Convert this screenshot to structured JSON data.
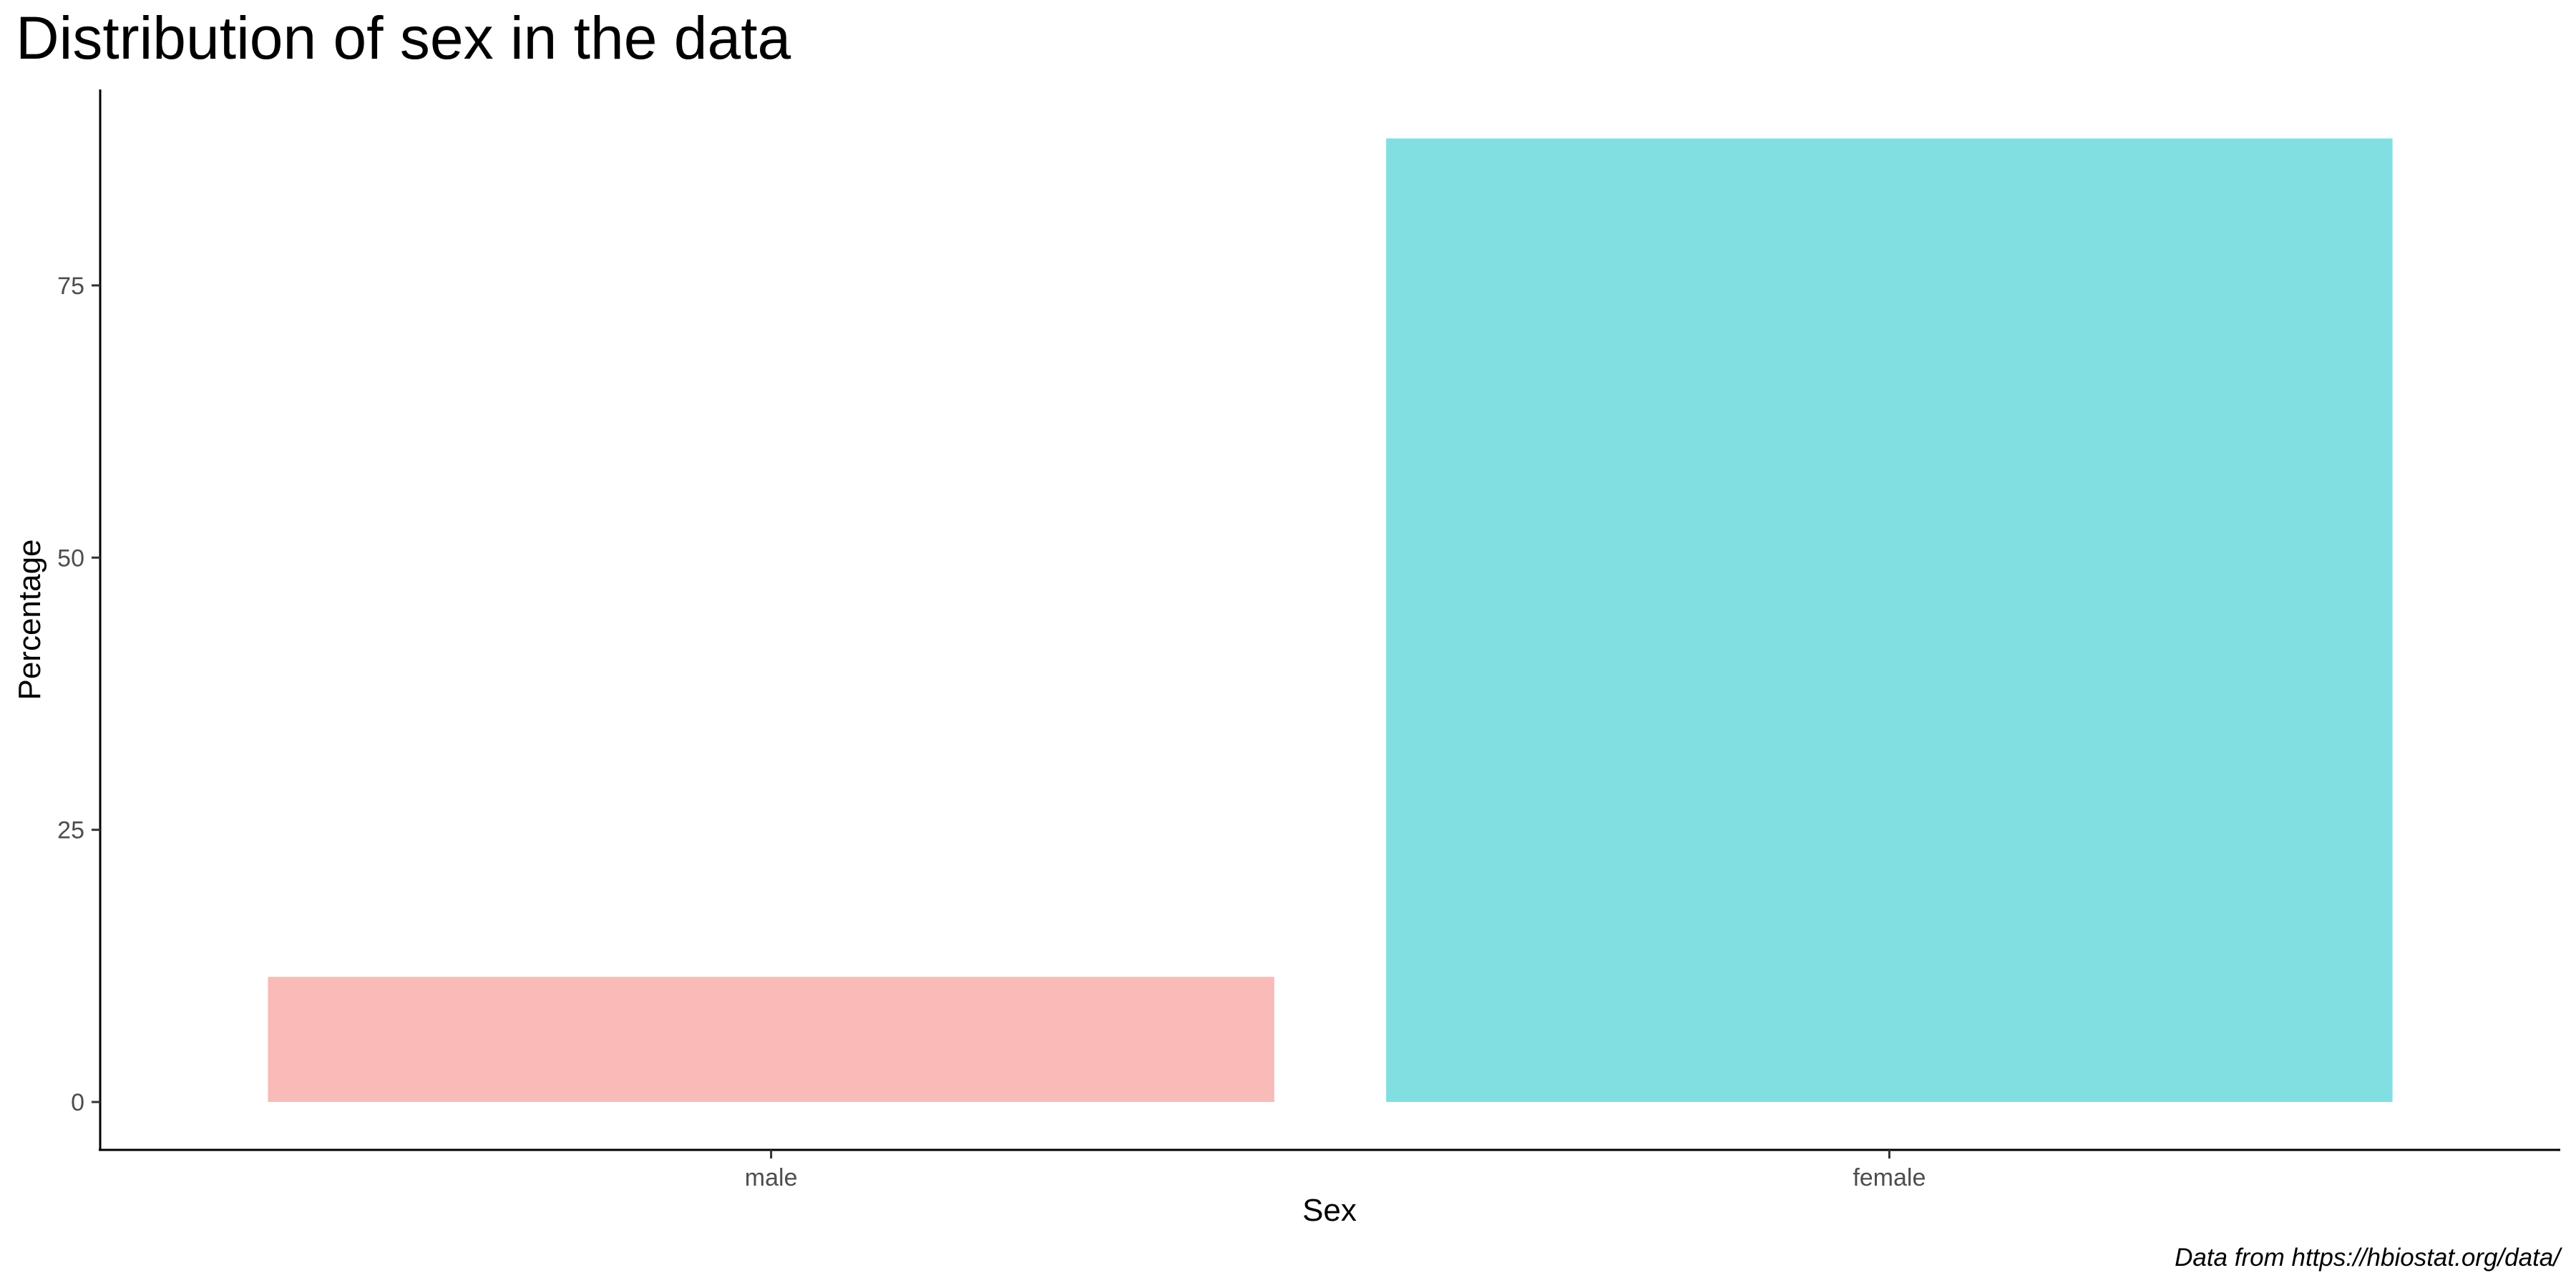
{
  "chart_data": {
    "type": "bar",
    "title": "Distribution of sex in the data",
    "xlabel": "Sex",
    "ylabel": "Percentage",
    "caption": "Data from https://hbiostat.org/data/",
    "categories": [
      "male",
      "female"
    ],
    "values": [
      11.5,
      88.5
    ],
    "colors": [
      "#F8BBB8",
      "#82DFE1"
    ],
    "yticks": [
      0,
      25,
      50,
      75
    ],
    "ylim": [
      -4.4,
      93.0
    ],
    "grid": false,
    "legend": "none"
  }
}
